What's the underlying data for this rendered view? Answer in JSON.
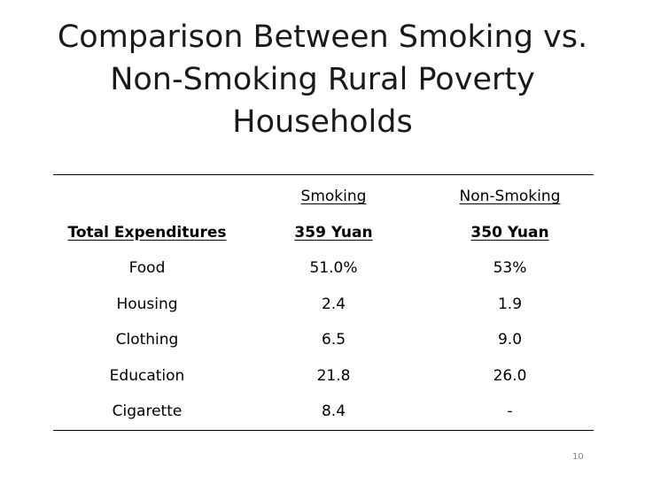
{
  "slide": {
    "title": "Comparison Between Smoking vs. Non-Smoking Rural Poverty Households",
    "page_number": "10"
  },
  "table": {
    "headers": [
      "",
      "Smoking",
      "Non-Smoking"
    ],
    "total_row": {
      "label": "Total Expenditures",
      "smoking": "359 Yuan",
      "non_smoking": "350 Yuan"
    },
    "rows": [
      {
        "label": "Food",
        "smoking": "51.0%",
        "non_smoking": "53%"
      },
      {
        "label": "Housing",
        "smoking": "2.4",
        "non_smoking": "1.9"
      },
      {
        "label": "Clothing",
        "smoking": "6.5",
        "non_smoking": "9.0"
      },
      {
        "label": "Education",
        "smoking": "21.8",
        "non_smoking": "26.0"
      },
      {
        "label": "Cigarette",
        "smoking": "8.4",
        "non_smoking": "-"
      }
    ]
  }
}
